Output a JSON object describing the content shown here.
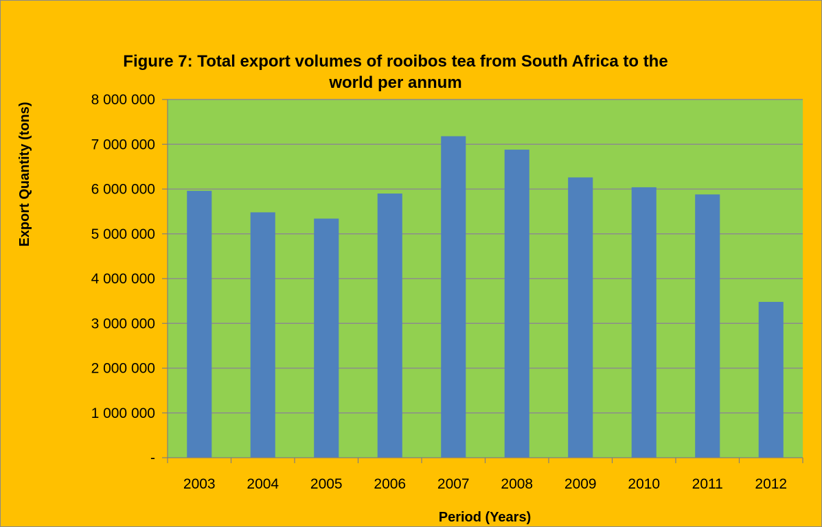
{
  "chart_data": {
    "type": "bar",
    "title": "Figure 7: Total export volumes of rooibos tea from South Africa to the world per annum",
    "title_lines": [
      "Figure 7: Total export volumes of rooibos tea from South Africa to the",
      "world per annum"
    ],
    "xlabel": "Period (Years)",
    "ylabel": "Export Quantity (tons)",
    "categories": [
      "2003",
      "2004",
      "2005",
      "2006",
      "2007",
      "2008",
      "2009",
      "2010",
      "2011",
      "2012"
    ],
    "values": [
      5960000,
      5480000,
      5340000,
      5900000,
      7180000,
      6880000,
      6260000,
      6040000,
      5880000,
      3480000
    ],
    "ylim": [
      0,
      8000000
    ],
    "yticks": [
      0,
      1000000,
      2000000,
      3000000,
      4000000,
      5000000,
      6000000,
      7000000,
      8000000
    ],
    "ytick_labels": [
      "-",
      "1 000 000",
      "2 000 000",
      "3 000 000",
      "4 000 000",
      "5 000 000",
      "6 000 000",
      "7 000 000",
      "8 000 000"
    ],
    "grid": true,
    "legend": "none",
    "colors": {
      "background": "#FFC000",
      "plot_area": "#92D050",
      "bar": "#4F81BD",
      "gridline": "#8C8C8C"
    }
  }
}
